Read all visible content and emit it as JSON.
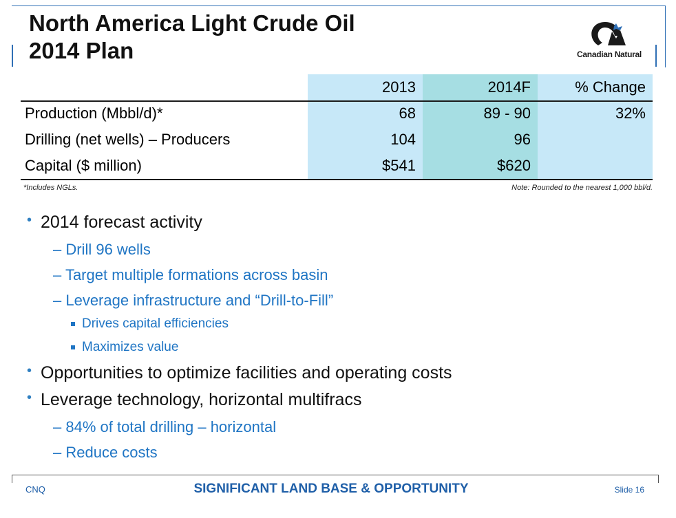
{
  "title": {
    "line1": "North America Light Crude Oil",
    "line2": "2014 Plan"
  },
  "logo": {
    "text": "Canadian Natural",
    "icon": "canadian-natural-logo-icon",
    "colors": {
      "mark": "#1a1a1a",
      "leaf": "#2f6fb5"
    }
  },
  "table": {
    "headers": [
      "",
      "2013",
      "2014F",
      "% Change"
    ],
    "rows": [
      {
        "label": "Production (Mbbl/d)*",
        "v2013": "68",
        "v2014": "89 - 90",
        "change": "32%"
      },
      {
        "label": "Drilling (net wells) – Producers",
        "v2013": "104",
        "v2014": "96",
        "change": ""
      },
      {
        "label": "Capital ($ million)",
        "v2013": "$541",
        "v2014": "$620",
        "change": ""
      }
    ],
    "note_left": "*Includes NGLs.",
    "note_right": "Note: Rounded to the nearest 1,000 bbl/d."
  },
  "bullets": {
    "b1": "2014 forecast activity",
    "b1_1": "– Drill 96 wells",
    "b1_2": "– Target multiple formations across basin",
    "b1_3": "– Leverage infrastructure and “Drill-to-Fill”",
    "b1_3_1": "Drives capital efficiencies",
    "b1_3_2": "Maximizes value",
    "b2": "Opportunities to optimize facilities and operating costs",
    "b3": "Leverage technology, horizontal multifracs",
    "b3_1": "– 84% of total drilling – horizontal",
    "b3_2": "– Reduce costs"
  },
  "footer": {
    "left": "CNQ",
    "center": "SIGNIFICANT LAND BASE & OPPORTUNITY",
    "right": "Slide 16"
  },
  "colors": {
    "accent_blue": "#1f75c4",
    "col_light": "#c7e8f8",
    "col_teal": "#a6dee3",
    "footer_blue": "#1f5fa8"
  }
}
